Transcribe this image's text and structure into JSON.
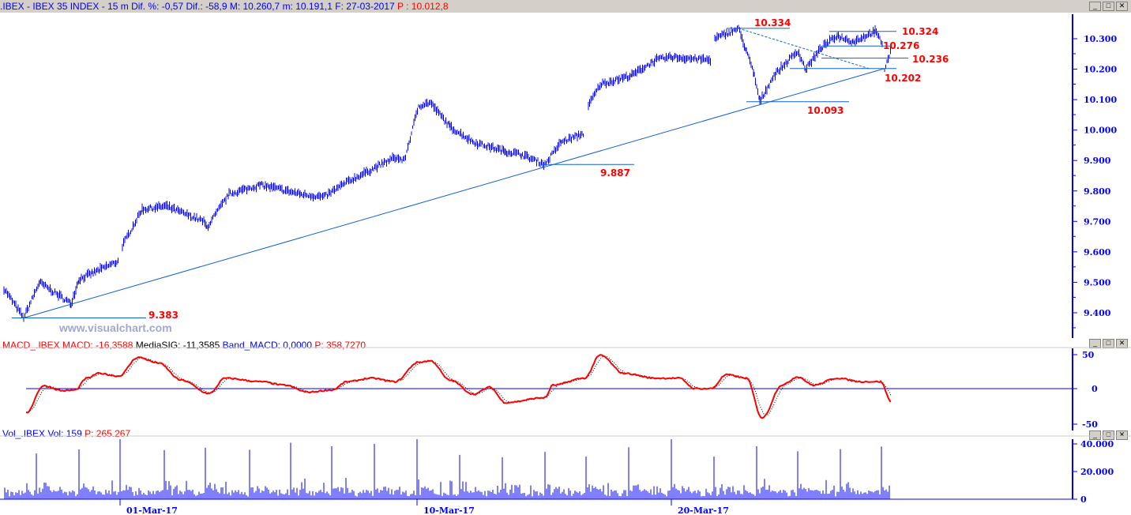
{
  "header": {
    "symbol": ".IBEX - IBEX 35 INDEX -",
    "timeframe": "15 m",
    "dif_pct": "Dif. %: -0,57",
    "dif": "Dif.: -58,9",
    "max": "M: 10.260,7",
    "min": "m: 10.191,1",
    "date": "F: 27-03-2017",
    "price": "P : 10.012,8"
  },
  "macd_header": {
    "name": "MACD_.IBEX",
    "macd": "MACD: -16,3588",
    "signal": "MediaSIG: -11,3585",
    "band": "Band_MACD: 0,0000",
    "p": "P: 358,7270"
  },
  "vol_header": {
    "name": "Vol_.IBEX",
    "vol": "Vol: 159",
    "p": "P: 265.267"
  },
  "watermark": "www.visualchart.com",
  "price_axis": [
    "10.300",
    "10.200",
    "10.100",
    "10.000",
    "9.900",
    "9.800",
    "9.700",
    "9.600",
    "9.500",
    "9.400"
  ],
  "macd_axis": [
    "50",
    "0",
    "-50"
  ],
  "vol_axis": [
    "40.000",
    "20.000",
    "0"
  ],
  "dates": [
    "01-Mar-17",
    "10-Mar-17",
    "20-Mar-17"
  ],
  "levels": [
    {
      "label": "10.334",
      "value": 10334
    },
    {
      "label": "10.324",
      "value": 10324
    },
    {
      "label": "10.276",
      "value": 10276
    },
    {
      "label": "10.236",
      "value": 10236
    },
    {
      "label": "10.202",
      "value": 10202
    },
    {
      "label": "10.093",
      "value": 10093
    },
    {
      "label": "9.887",
      "value": 9887
    },
    {
      "label": "9.383",
      "value": 9383
    }
  ],
  "colors": {
    "price": "#0000ff",
    "macd": "#ff0000",
    "signal": "#000000",
    "level_label": "#ff0000"
  },
  "chart_data": {
    "type": "line",
    "price_anchors": [
      [
        5,
        9480
      ],
      [
        30,
        9383
      ],
      [
        50,
        9500
      ],
      [
        90,
        9430
      ],
      [
        100,
        9510
      ],
      [
        150,
        9570
      ],
      null,
      [
        155,
        9620
      ],
      [
        180,
        9740
      ],
      [
        210,
        9750
      ],
      [
        258,
        9700
      ],
      [
        262,
        9680
      ],
      [
        290,
        9790
      ],
      [
        330,
        9820
      ],
      [
        380,
        9790
      ],
      [
        410,
        9780
      ],
      [
        440,
        9830
      ],
      [
        470,
        9870
      ],
      [
        500,
        9910
      ],
      [
        512,
        9900
      ],
      [
        530,
        10080
      ],
      [
        545,
        10090
      ],
      [
        570,
        10010
      ],
      [
        600,
        9960
      ],
      [
        640,
        9930
      ],
      [
        660,
        9920
      ],
      [
        690,
        9887
      ],
      [
        710,
        9960
      ],
      [
        740,
        9990
      ],
      null,
      [
        745,
        10080
      ],
      [
        760,
        10150
      ],
      [
        800,
        10180
      ],
      [
        830,
        10230
      ],
      [
        850,
        10240
      ],
      [
        900,
        10230
      ],
      null,
      [
        905,
        10300
      ],
      [
        935,
        10334
      ],
      [
        945,
        10260
      ],
      [
        955,
        10180
      ],
      [
        962,
        10093
      ],
      [
        980,
        10180
      ],
      [
        1010,
        10260
      ],
      [
        1020,
        10200
      ],
      [
        1040,
        10270
      ],
      [
        1060,
        10310
      ],
      [
        1080,
        10290
      ],
      [
        1108,
        10324
      ],
      [
        1118,
        10280
      ],
      null,
      [
        1120,
        10200
      ],
      [
        1128,
        10260
      ]
    ],
    "macd_anchors": [
      [
        33,
        -35
      ],
      [
        55,
        4
      ],
      [
        80,
        -3
      ],
      [
        95,
        -2
      ],
      [
        110,
        15
      ],
      [
        125,
        22
      ],
      [
        150,
        18
      ],
      [
        175,
        45
      ],
      [
        200,
        37
      ],
      [
        230,
        12
      ],
      [
        265,
        -7
      ],
      [
        285,
        15
      ],
      [
        330,
        10
      ],
      [
        360,
        5
      ],
      [
        390,
        -5
      ],
      [
        420,
        -2
      ],
      [
        440,
        10
      ],
      [
        470,
        15
      ],
      [
        500,
        10
      ],
      [
        530,
        38
      ],
      [
        545,
        40
      ],
      [
        570,
        12
      ],
      [
        600,
        -8
      ],
      [
        620,
        2
      ],
      [
        640,
        -20
      ],
      [
        690,
        -13
      ],
      [
        700,
        5
      ],
      [
        740,
        15
      ],
      [
        760,
        48
      ],
      [
        790,
        22
      ],
      [
        830,
        15
      ],
      [
        860,
        15
      ],
      [
        880,
        0
      ],
      [
        900,
        0
      ],
      [
        920,
        20
      ],
      [
        945,
        15
      ],
      [
        965,
        -42
      ],
      [
        990,
        5
      ],
      [
        1010,
        17
      ],
      [
        1030,
        5
      ],
      [
        1060,
        15
      ],
      [
        1090,
        10
      ],
      [
        1115,
        10
      ],
      [
        1128,
        -18
      ]
    ],
    "macd_range": [
      -50,
      50
    ],
    "price_range": [
      9383,
      10334
    ]
  }
}
